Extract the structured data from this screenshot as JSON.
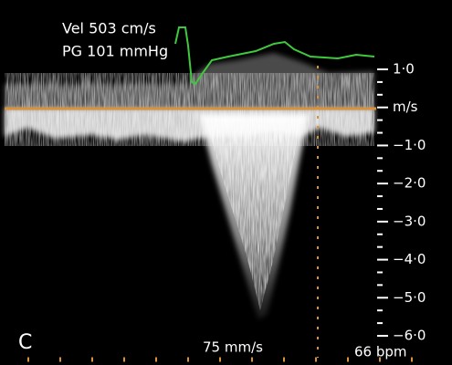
{
  "readout": {
    "velocity": "Vel 503 cm/s",
    "gradient": "PG 101 mmHg"
  },
  "scale": {
    "labels": [
      "1·0",
      "m/s",
      "−1·0",
      "−2·0",
      "−3·0",
      "−4·0",
      "−5·0",
      "−6·0"
    ]
  },
  "panel_label": "C",
  "sweep_speed": "75 mm/s",
  "heart_rate": "66 bpm"
}
